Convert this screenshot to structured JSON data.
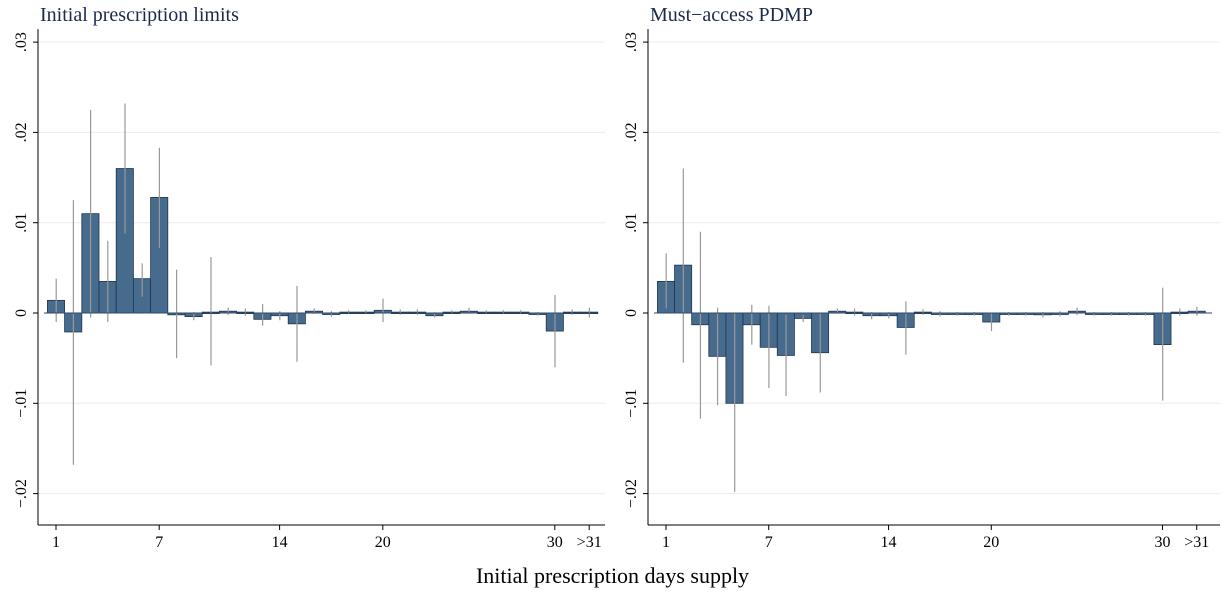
{
  "chart_data": [
    {
      "type": "bar",
      "title": "Initial prescription limits",
      "xlabel": "Initial prescription days supply",
      "ylabel": "",
      "ylim": [
        -0.023,
        0.031
      ],
      "y_ticks": [
        -0.02,
        -0.01,
        0,
        0.01,
        0.02,
        0.03
      ],
      "y_tick_labels": [
        "−.02",
        "−.01",
        "0",
        ".01",
        ".02",
        ".03"
      ],
      "x_ticks": [
        1,
        7,
        14,
        20,
        30,
        32
      ],
      "x_tick_labels": [
        "1",
        "7",
        "14",
        "20",
        "30",
        ">31"
      ],
      "grid": true,
      "bar_color": "#476b8d",
      "ci_color": "#999999",
      "x": [
        1,
        2,
        3,
        4,
        5,
        6,
        7,
        8,
        9,
        10,
        11,
        12,
        13,
        14,
        15,
        16,
        17,
        18,
        19,
        20,
        21,
        22,
        23,
        24,
        25,
        26,
        27,
        28,
        29,
        30,
        31,
        32
      ],
      "values": [
        0.0014,
        -0.0021,
        0.011,
        0.0035,
        0.016,
        0.0038,
        0.0128,
        -0.0002,
        -0.0004,
        0.0001,
        0.0002,
        0.0001,
        -0.0007,
        -0.0003,
        -0.0012,
        0.0002,
        -0.0001,
        0.0001,
        0.0001,
        0.0003,
        0.0001,
        0.0001,
        -0.0003,
        0.0001,
        0.0002,
        0.0001,
        0.0001,
        0.0001,
        -0.0001,
        -0.002,
        0.0001,
        0.0001
      ],
      "ci_low": [
        -0.001,
        -0.0168,
        -0.0005,
        -0.001,
        0.0088,
        0.0018,
        0.0072,
        -0.005,
        -0.0008,
        -0.0058,
        -0.0002,
        -0.0003,
        -0.0014,
        -0.0008,
        -0.0054,
        -0.0001,
        -0.0004,
        -0.0001,
        -0.0001,
        -0.001,
        -0.0002,
        -0.0002,
        -0.0005,
        -0.0001,
        -0.0001,
        -0.0001,
        -0.0001,
        -0.0001,
        -0.0003,
        -0.006,
        -0.0002,
        -0.0005
      ],
      "ci_high": [
        0.0038,
        0.0125,
        0.0225,
        0.008,
        0.0232,
        0.0055,
        0.0183,
        0.0048,
        0.0001,
        0.0062,
        0.0006,
        0.0005,
        0.001,
        0.0002,
        0.003,
        0.0005,
        0.0002,
        0.0003,
        0.0003,
        0.0016,
        0.0004,
        0.0004,
        0.0001,
        0.0003,
        0.0006,
        0.0003,
        0.0003,
        0.0003,
        0.0001,
        0.002,
        0.0004,
        0.0006
      ]
    },
    {
      "type": "bar",
      "title": "Must−access PDMP",
      "xlabel": "Initial prescription days supply",
      "ylabel": "",
      "ylim": [
        -0.023,
        0.031
      ],
      "y_ticks": [
        -0.02,
        -0.01,
        0,
        0.01,
        0.02,
        0.03
      ],
      "y_tick_labels": [
        "−.02",
        "−.01",
        "0",
        ".01",
        ".02",
        ".03"
      ],
      "x_ticks": [
        1,
        7,
        14,
        20,
        30,
        32
      ],
      "x_tick_labels": [
        "1",
        "7",
        "14",
        "20",
        "30",
        ">31"
      ],
      "grid": true,
      "bar_color": "#476b8d",
      "ci_color": "#999999",
      "x": [
        1,
        2,
        3,
        4,
        5,
        6,
        7,
        8,
        9,
        10,
        11,
        12,
        13,
        14,
        15,
        16,
        17,
        18,
        19,
        20,
        21,
        22,
        23,
        24,
        25,
        26,
        27,
        28,
        29,
        30,
        31,
        32
      ],
      "values": [
        0.0035,
        0.0053,
        -0.0013,
        -0.0048,
        -0.01,
        -0.0013,
        -0.0038,
        -0.0047,
        -0.0006,
        -0.0044,
        0.0002,
        0.0001,
        -0.0003,
        -0.0003,
        -0.0016,
        0.0001,
        -0.0001,
        -0.0001,
        -0.0001,
        -0.001,
        -0.0001,
        -0.0001,
        -0.0002,
        -0.0001,
        0.0002,
        -0.0001,
        -0.0001,
        -0.0001,
        -0.0001,
        -0.0035,
        0.0001,
        0.0002
      ],
      "ci_low": [
        0.0005,
        -0.0055,
        -0.0117,
        -0.0102,
        -0.0198,
        -0.0035,
        -0.0083,
        -0.0092,
        -0.001,
        -0.0088,
        -0.0001,
        -0.0003,
        -0.0007,
        -0.0006,
        -0.0046,
        -0.0002,
        -0.0004,
        -0.0003,
        -0.0003,
        -0.002,
        -0.0003,
        -0.0003,
        -0.0005,
        -0.0004,
        -0.0002,
        -0.0003,
        -0.0003,
        -0.0003,
        -0.0003,
        -0.0097,
        -0.0003,
        -0.0003
      ],
      "ci_high": [
        0.0066,
        0.016,
        0.009,
        0.0006,
        0.0,
        0.0009,
        0.0008,
        -0.0002,
        -0.0002,
        0.0,
        0.0005,
        0.0005,
        0.0001,
        0.0001,
        0.0013,
        0.0004,
        0.0002,
        0.0001,
        0.0001,
        0.0,
        0.0001,
        0.0001,
        0.0001,
        0.0002,
        0.0006,
        0.0001,
        0.0001,
        0.0001,
        0.0001,
        0.0028,
        0.0005,
        0.0007
      ]
    }
  ]
}
